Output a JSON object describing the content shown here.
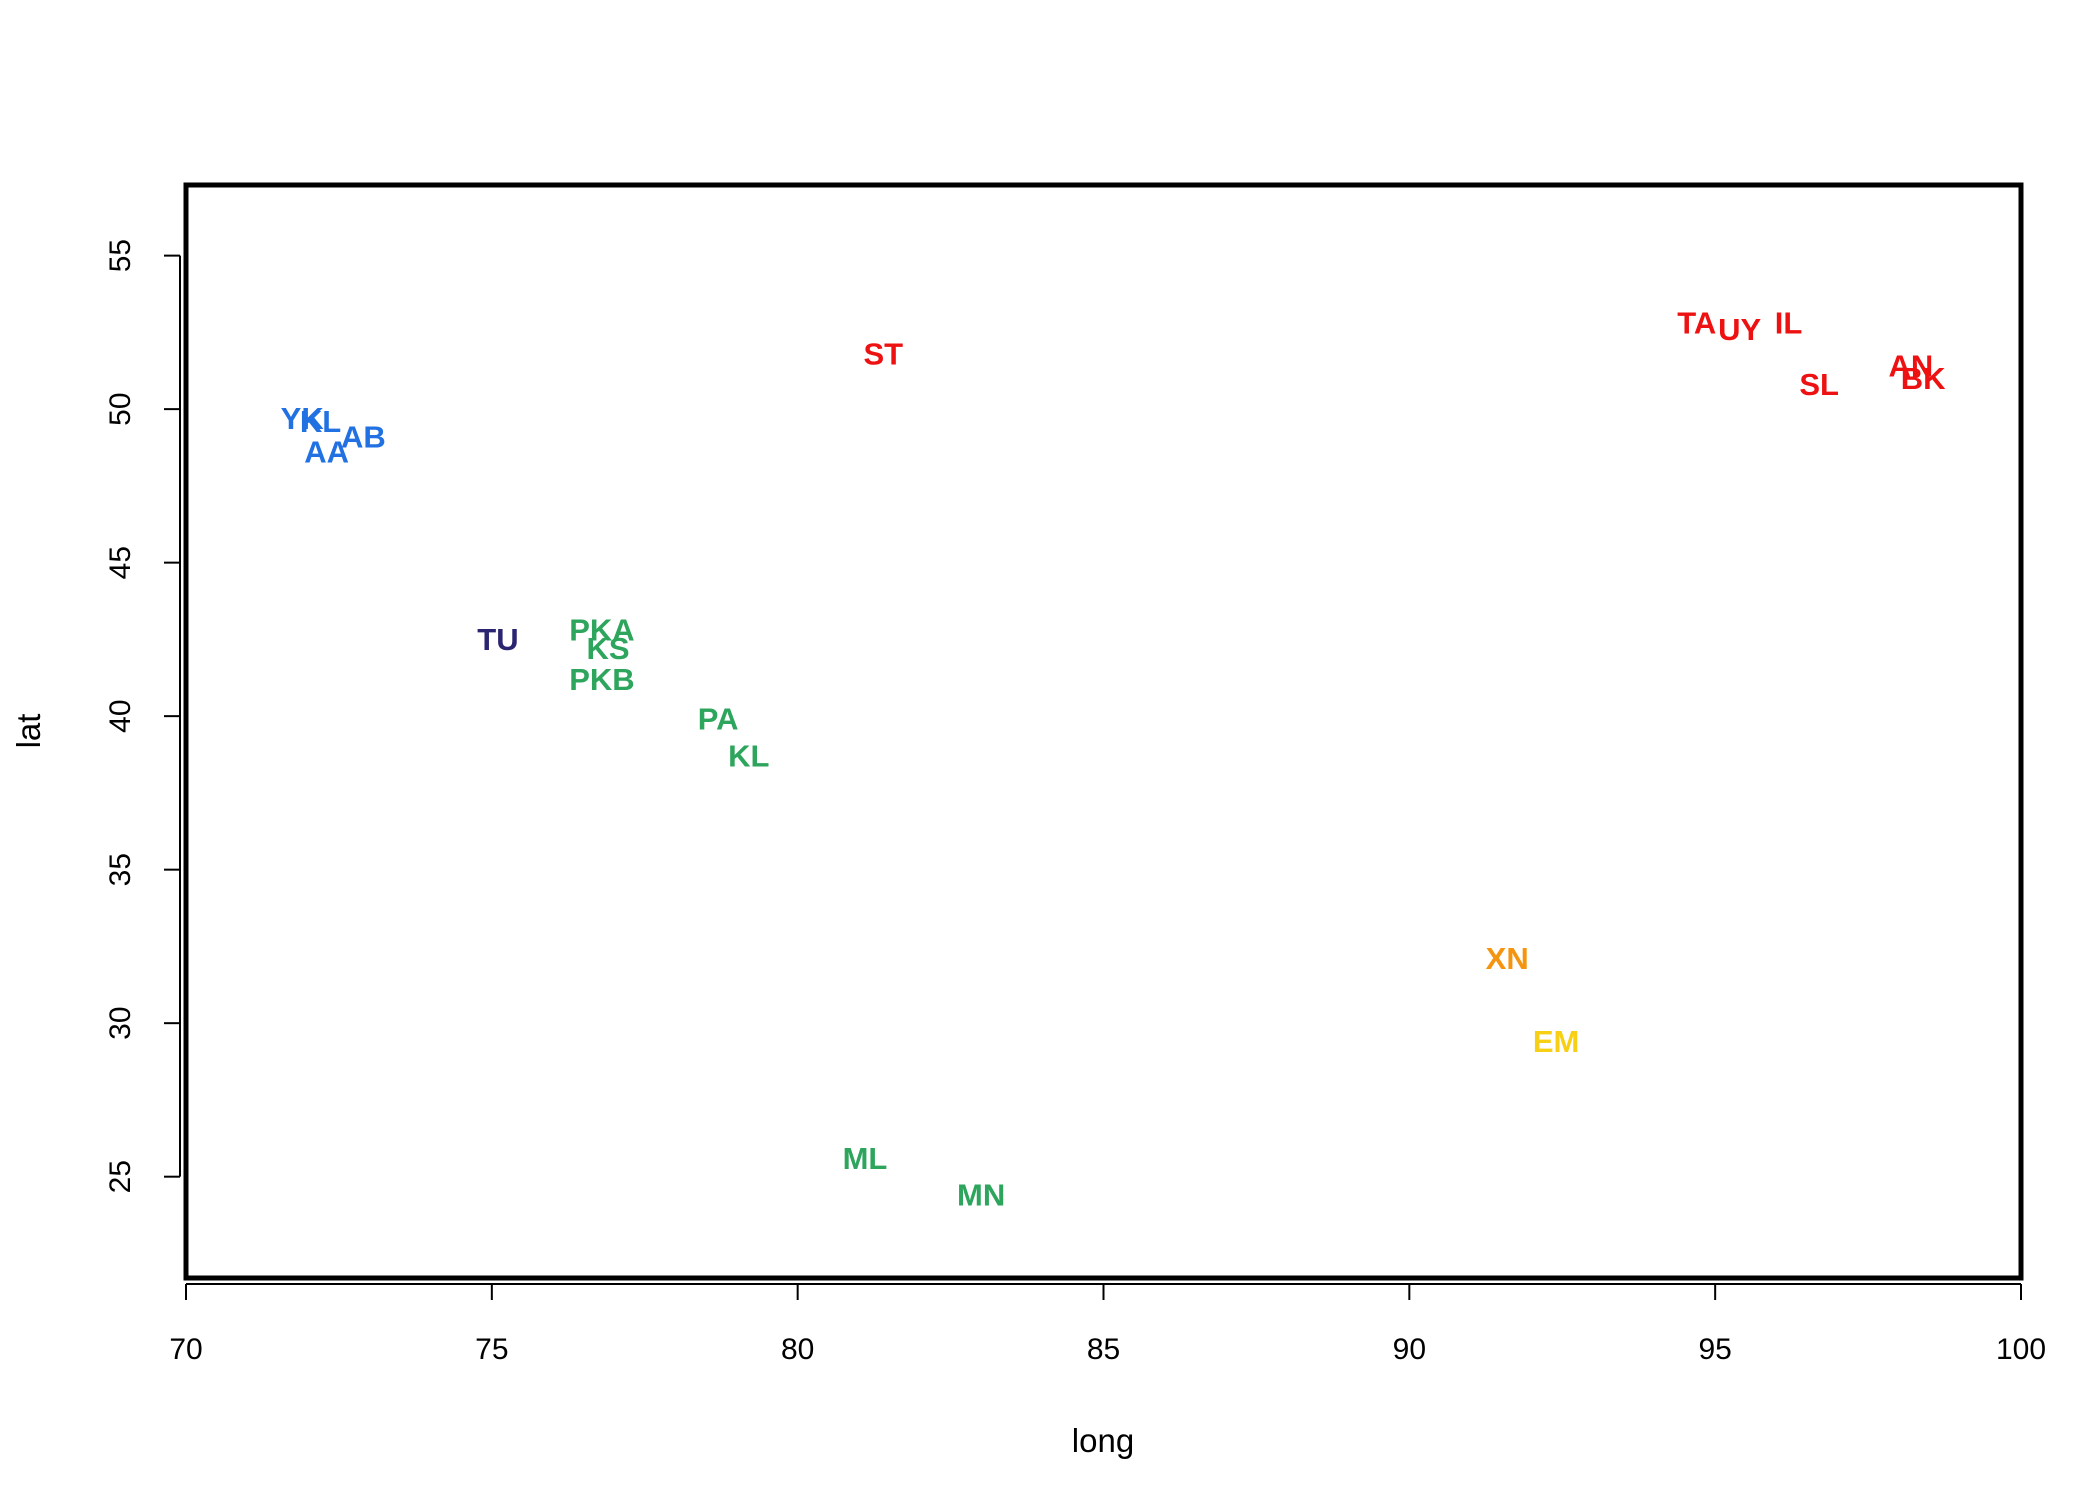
{
  "colors": {
    "red": "#EE1111",
    "blue": "#2271E2",
    "navy": "#2B2470",
    "green": "#2EA55D",
    "orange": "#F5940F",
    "gold": "#F7CF14"
  },
  "chart_data": {
    "type": "scatter",
    "title": "",
    "xlabel": "long",
    "ylabel": "lat",
    "xlim": [
      70,
      100
    ],
    "ylim": [
      21.7,
      57.3
    ],
    "xticks": [
      70,
      75,
      80,
      85,
      90,
      95,
      100
    ],
    "yticks": [
      25,
      30,
      35,
      40,
      45,
      50,
      55
    ],
    "grid": false,
    "legend": "none",
    "points": [
      {
        "label": "ST",
        "x": 81.4,
        "y": 51.8,
        "color": "red"
      },
      {
        "label": "TA",
        "x": 94.7,
        "y": 52.8,
        "color": "red"
      },
      {
        "label": "UY",
        "x": 95.4,
        "y": 52.6,
        "color": "red"
      },
      {
        "label": "IL",
        "x": 96.2,
        "y": 52.8,
        "color": "red"
      },
      {
        "label": "SL",
        "x": 96.7,
        "y": 50.8,
        "color": "red"
      },
      {
        "label": "AN",
        "x": 98.2,
        "y": 51.4,
        "color": "red"
      },
      {
        "label": "BK",
        "x": 98.4,
        "y": 51.0,
        "color": "red"
      },
      {
        "label": "YK",
        "x": 71.9,
        "y": 49.7,
        "color": "blue"
      },
      {
        "label": "KL",
        "x": 72.2,
        "y": 49.6,
        "color": "blue"
      },
      {
        "label": "AB",
        "x": 72.9,
        "y": 49.1,
        "color": "blue"
      },
      {
        "label": "AA",
        "x": 72.3,
        "y": 48.6,
        "color": "blue"
      },
      {
        "label": "TU",
        "x": 75.1,
        "y": 42.5,
        "color": "navy"
      },
      {
        "label": "PKA",
        "x": 76.8,
        "y": 42.8,
        "color": "green"
      },
      {
        "label": "KS",
        "x": 76.9,
        "y": 42.2,
        "color": "green"
      },
      {
        "label": "PKB",
        "x": 76.8,
        "y": 41.2,
        "color": "green"
      },
      {
        "label": "PA",
        "x": 78.7,
        "y": 39.9,
        "color": "green"
      },
      {
        "label": "KL",
        "x": 79.2,
        "y": 38.7,
        "color": "green"
      },
      {
        "label": "ML",
        "x": 81.1,
        "y": 25.6,
        "color": "green"
      },
      {
        "label": "MN",
        "x": 83.0,
        "y": 24.4,
        "color": "green"
      },
      {
        "label": "XN",
        "x": 91.6,
        "y": 32.1,
        "color": "orange"
      },
      {
        "label": "EM",
        "x": 92.4,
        "y": 29.4,
        "color": "gold"
      }
    ]
  }
}
